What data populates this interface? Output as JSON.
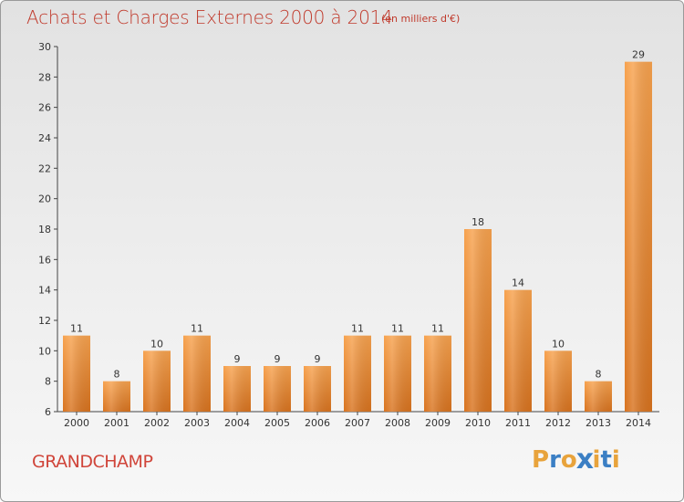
{
  "header": {
    "title": "Achats et Charges Externes 2000 à 2014",
    "subtitle": "(en milliers d'€)"
  },
  "footer": {
    "place": "GRANDCHAMP",
    "logo_text": "Proxiti"
  },
  "colors": {
    "title": "#c0392b",
    "bar_top": "#f7a24e",
    "bar_bottom": "#d8731f",
    "logo_letters": [
      "#e8a33c",
      "#3b7fc4",
      "#e8a33c",
      "#3b7fc4",
      "#e8a33c",
      "#3b7fc4",
      "#e8a33c"
    ]
  },
  "chart_data": {
    "type": "bar",
    "title": "Achats et Charges Externes 2000 à 2014",
    "subtitle": "(en milliers d'€)",
    "categories": [
      "2000",
      "2001",
      "2002",
      "2003",
      "2004",
      "2005",
      "2006",
      "2007",
      "2008",
      "2009",
      "2010",
      "2011",
      "2012",
      "2013",
      "2014"
    ],
    "values": [
      11,
      8,
      10,
      11,
      9,
      9,
      9,
      11,
      11,
      11,
      18,
      14,
      10,
      8,
      29
    ],
    "ylim": [
      6,
      30
    ],
    "yticks": [
      6,
      8,
      10,
      12,
      14,
      16,
      18,
      20,
      22,
      24,
      26,
      28,
      30
    ],
    "grid": false,
    "xlabel": "",
    "ylabel": ""
  }
}
